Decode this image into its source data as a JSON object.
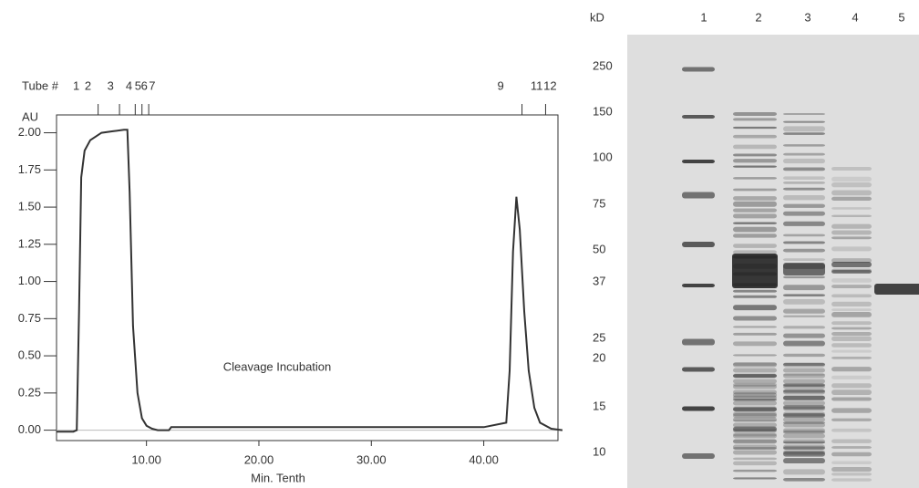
{
  "chart_data": {
    "type": "line",
    "x": [
      2,
      3.5,
      3.8,
      4.0,
      4.2,
      4.5,
      5,
      6,
      7,
      8,
      8.3,
      8.5,
      8.8,
      9.2,
      9.6,
      10,
      10.5,
      11,
      12,
      12.2,
      20,
      30,
      40,
      42,
      42.3,
      42.6,
      42.9,
      43.2,
      43.6,
      44,
      44.5,
      45,
      46,
      47
    ],
    "values": [
      -0.01,
      -0.01,
      0,
      0.8,
      1.7,
      1.88,
      1.95,
      2.0,
      2.01,
      2.02,
      2.02,
      1.6,
      0.7,
      0.25,
      0.08,
      0.03,
      0.01,
      0,
      0,
      0.02,
      0.02,
      0.02,
      0.02,
      0.05,
      0.4,
      1.2,
      1.57,
      1.35,
      0.8,
      0.4,
      0.15,
      0.05,
      0.01,
      0
    ],
    "color": "#333333",
    "xlabel": "Min. Tenth",
    "ylabel": "AU",
    "xlim": [
      2,
      46.6
    ],
    "ylim": [
      -0.07,
      2.12
    ],
    "xticks": [
      {
        "value": 10,
        "label": "10.00"
      },
      {
        "value": 20,
        "label": "20.00"
      },
      {
        "value": 30,
        "label": "30.00"
      },
      {
        "value": 40,
        "label": "40.00"
      }
    ],
    "yticks": [
      {
        "value": 0,
        "label": "0.00"
      },
      {
        "value": 0.25,
        "label": "0.25"
      },
      {
        "value": 0.5,
        "label": "0.50"
      },
      {
        "value": 0.75,
        "label": "0.75"
      },
      {
        "value": 1,
        "label": "1.00"
      },
      {
        "value": 1.25,
        "label": "1.25"
      },
      {
        "value": 1.5,
        "label": "1.50"
      },
      {
        "value": 1.75,
        "label": "1.75"
      },
      {
        "value": 2,
        "label": "2.00"
      }
    ],
    "annotation": "Cleavage Incubation",
    "fractions": {
      "title": "Tube #",
      "labels": [
        "1",
        "2",
        "3",
        "4",
        "5",
        "6",
        "7",
        "9",
        "11",
        "12"
      ],
      "positions": [
        3.75,
        4.8,
        6.8,
        8.45,
        9.25,
        9.8,
        10.5,
        41.5,
        44.7,
        45.9
      ],
      "ticks": [
        5.7,
        7.6,
        9.0,
        9.6,
        10.2,
        43.4,
        45.5
      ]
    }
  },
  "gel": {
    "unit": "kD",
    "lanes": [
      "1",
      "2",
      "3",
      "4",
      "5"
    ],
    "markers": [
      "250",
      "150",
      "100",
      "75",
      "50",
      "37",
      "25",
      "20",
      "15",
      "10"
    ]
  }
}
